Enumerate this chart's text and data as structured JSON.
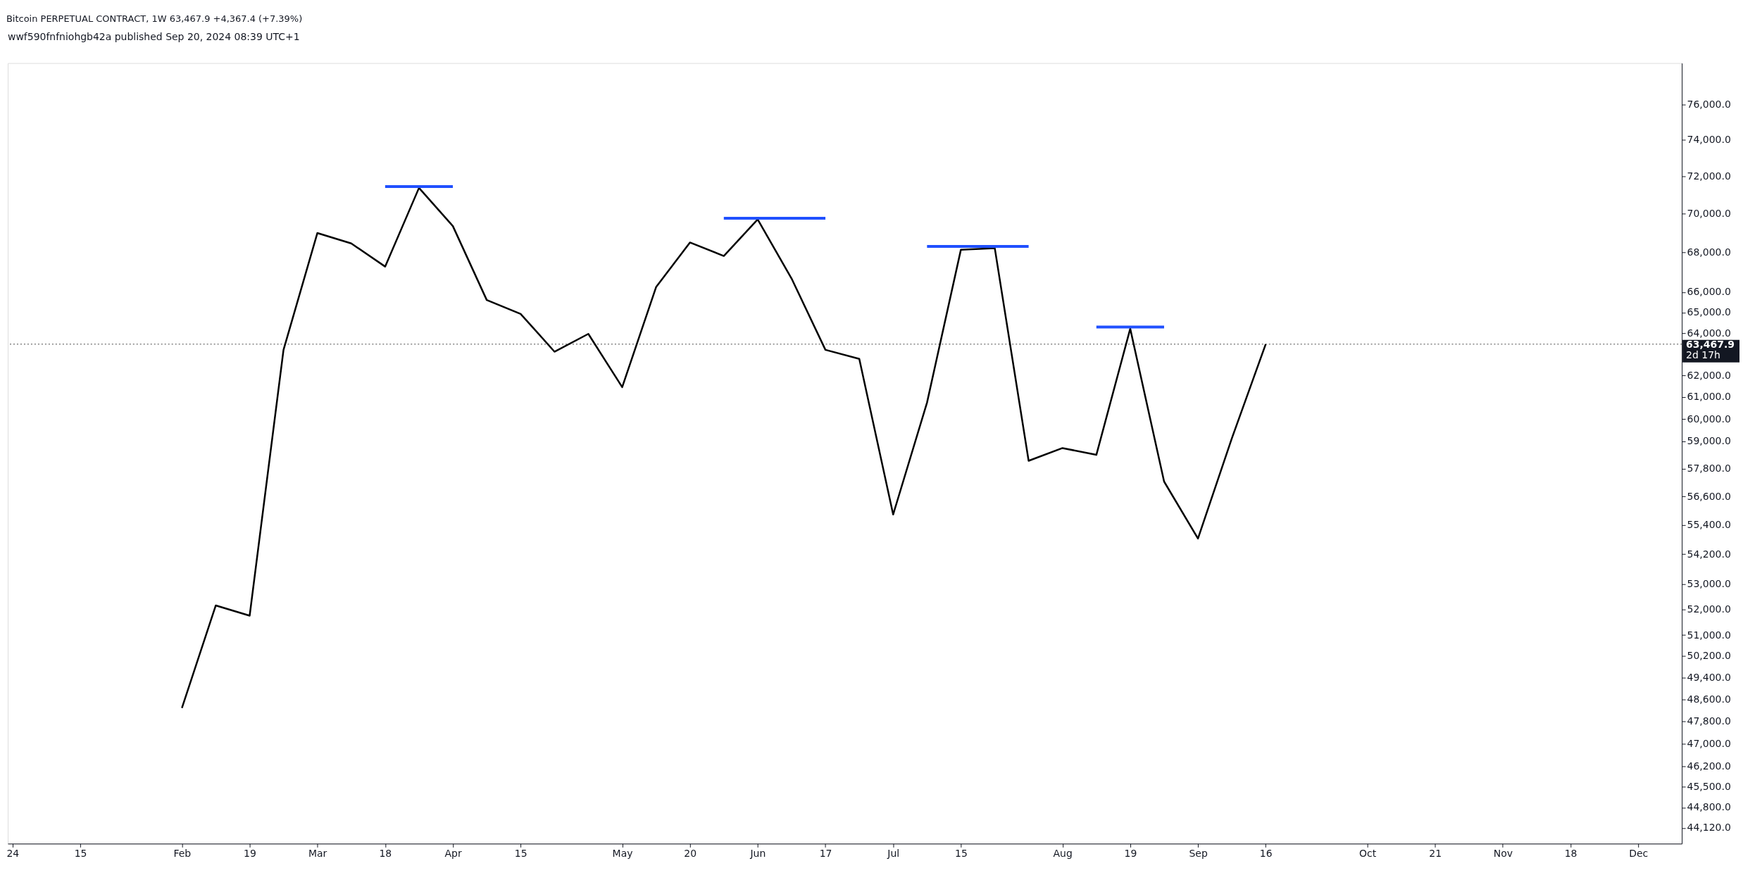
{
  "chart_data": {
    "type": "line",
    "title": "Bitcoin PERPETUAL CONTRACT, 1W  63,467.9  +4,367.4 (+7.39%)",
    "annotations": [
      "wwf590fnfniohgb42a published Sep 20, 2024 08:39 UTC+1",
      "2d 17h"
    ],
    "log": "y",
    "grid": false,
    "marker": "none",
    "line_style": "solid",
    "xlim": [
      "2023-12-31",
      "2024-12-11"
    ],
    "xticks": [
      {
        "value": "2024-01-01",
        "label": "24"
      },
      {
        "value": "2024-01-15",
        "label": "15"
      },
      {
        "value": "2024-02-05",
        "label": "Feb"
      },
      {
        "value": "2024-02-19",
        "label": "19"
      },
      {
        "value": "2024-03-04",
        "label": "Mar"
      },
      {
        "value": "2024-03-18",
        "label": "18"
      },
      {
        "value": "2024-04-01",
        "label": "Apr"
      },
      {
        "value": "2024-04-15",
        "label": "15"
      },
      {
        "value": "2024-05-06",
        "label": "May"
      },
      {
        "value": "2024-05-20",
        "label": "20"
      },
      {
        "value": "2024-06-03",
        "label": "Jun"
      },
      {
        "value": "2024-06-17",
        "label": "17"
      },
      {
        "value": "2024-07-01",
        "label": "Jul"
      },
      {
        "value": "2024-07-15",
        "label": "15"
      },
      {
        "value": "2024-08-05",
        "label": "Aug"
      },
      {
        "value": "2024-08-19",
        "label": "19"
      },
      {
        "value": "2024-09-02",
        "label": "Sep"
      },
      {
        "value": "2024-09-16",
        "label": "16"
      },
      {
        "value": "2024-10-07",
        "label": "Oct"
      },
      {
        "value": "2024-10-21",
        "label": "21"
      },
      {
        "value": "2024-11-04",
        "label": "Nov"
      },
      {
        "value": "2024-11-18",
        "label": "18"
      },
      {
        "value": "2024-12-02",
        "label": "Dec"
      }
    ],
    "ylim": [
      43600,
      78400
    ],
    "yticks": [
      {
        "value": 44120,
        "label": "44,120.0"
      },
      {
        "value": 44800,
        "label": "44,800.0"
      },
      {
        "value": 45500,
        "label": "45,500.0"
      },
      {
        "value": 46200,
        "label": "46,200.0"
      },
      {
        "value": 47000,
        "label": "47,000.0"
      },
      {
        "value": 47800,
        "label": "47,800.0"
      },
      {
        "value": 48600,
        "label": "48,600.0"
      },
      {
        "value": 49400,
        "label": "49,400.0"
      },
      {
        "value": 50200,
        "label": "50,200.0"
      },
      {
        "value": 51000,
        "label": "51,000.0"
      },
      {
        "value": 52000,
        "label": "52,000.0"
      },
      {
        "value": 53000,
        "label": "53,000.0"
      },
      {
        "value": 54200,
        "label": "54,200.0"
      },
      {
        "value": 55400,
        "label": "55,400.0"
      },
      {
        "value": 56600,
        "label": "56,600.0"
      },
      {
        "value": 57800,
        "label": "57,800.0"
      },
      {
        "value": 59000,
        "label": "59,000.0"
      },
      {
        "value": 60000,
        "label": "60,000.0"
      },
      {
        "value": 61000,
        "label": "61,000.0"
      },
      {
        "value": 62000,
        "label": "62,000.0"
      },
      {
        "value": 64000,
        "label": "64,000.0"
      },
      {
        "value": 65000,
        "label": "65,000.0"
      },
      {
        "value": 66000,
        "label": "66,000.0"
      },
      {
        "value": 68000,
        "label": "68,000.0"
      },
      {
        "value": 70000,
        "label": "70,000.0"
      },
      {
        "value": 72000,
        "label": "72,000.0"
      },
      {
        "value": 74000,
        "label": "74,000.0"
      },
      {
        "value": 76000,
        "label": "76,000.0"
      }
    ],
    "ref_lines": [
      {
        "axis": "y",
        "value": 63467.9,
        "label": "63,467.9",
        "color": "#444444",
        "line_style": "dotted"
      }
    ],
    "series": [
      {
        "color": "#000000",
        "x": [
          "2024-02-05",
          "2024-02-12",
          "2024-02-19",
          "2024-02-26",
          "2024-03-04",
          "2024-03-11",
          "2024-03-18",
          "2024-03-25",
          "2024-04-01",
          "2024-04-08",
          "2024-04-15",
          "2024-04-22",
          "2024-04-29",
          "2024-05-06",
          "2024-05-13",
          "2024-05-20",
          "2024-05-27",
          "2024-06-03",
          "2024-06-10",
          "2024-06-17",
          "2024-06-24",
          "2024-07-01",
          "2024-07-08",
          "2024-07-15",
          "2024-07-22",
          "2024-07-29",
          "2024-08-05",
          "2024-08-12",
          "2024-08-19",
          "2024-08-26",
          "2024-09-02",
          "2024-09-09",
          "2024-09-16"
        ],
        "values": [
          48280,
          52150,
          51750,
          63200,
          69000,
          68460,
          67280,
          71380,
          69360,
          65610,
          64930,
          63110,
          63960,
          61450,
          66250,
          68510,
          67820,
          69710,
          66680,
          63200,
          62770,
          55840,
          60740,
          68140,
          68220,
          58140,
          58700,
          58400,
          64210,
          57240,
          54840,
          59130,
          63467.9
        ]
      },
      {
        "color": "#2050ff",
        "x": [
          "2024-03-18",
          "2024-04-01"
        ],
        "values": [
          71450,
          71450
        ]
      },
      {
        "color": "#2050ff",
        "x": [
          "2024-05-27",
          "2024-06-17"
        ],
        "values": [
          69770,
          69770
        ]
      },
      {
        "color": "#2050ff",
        "x": [
          "2024-07-08",
          "2024-07-29"
        ],
        "values": [
          68310,
          68310
        ]
      },
      {
        "color": "#2050ff",
        "x": [
          "2024-08-12",
          "2024-08-26"
        ],
        "values": [
          64290,
          64290
        ]
      }
    ]
  }
}
